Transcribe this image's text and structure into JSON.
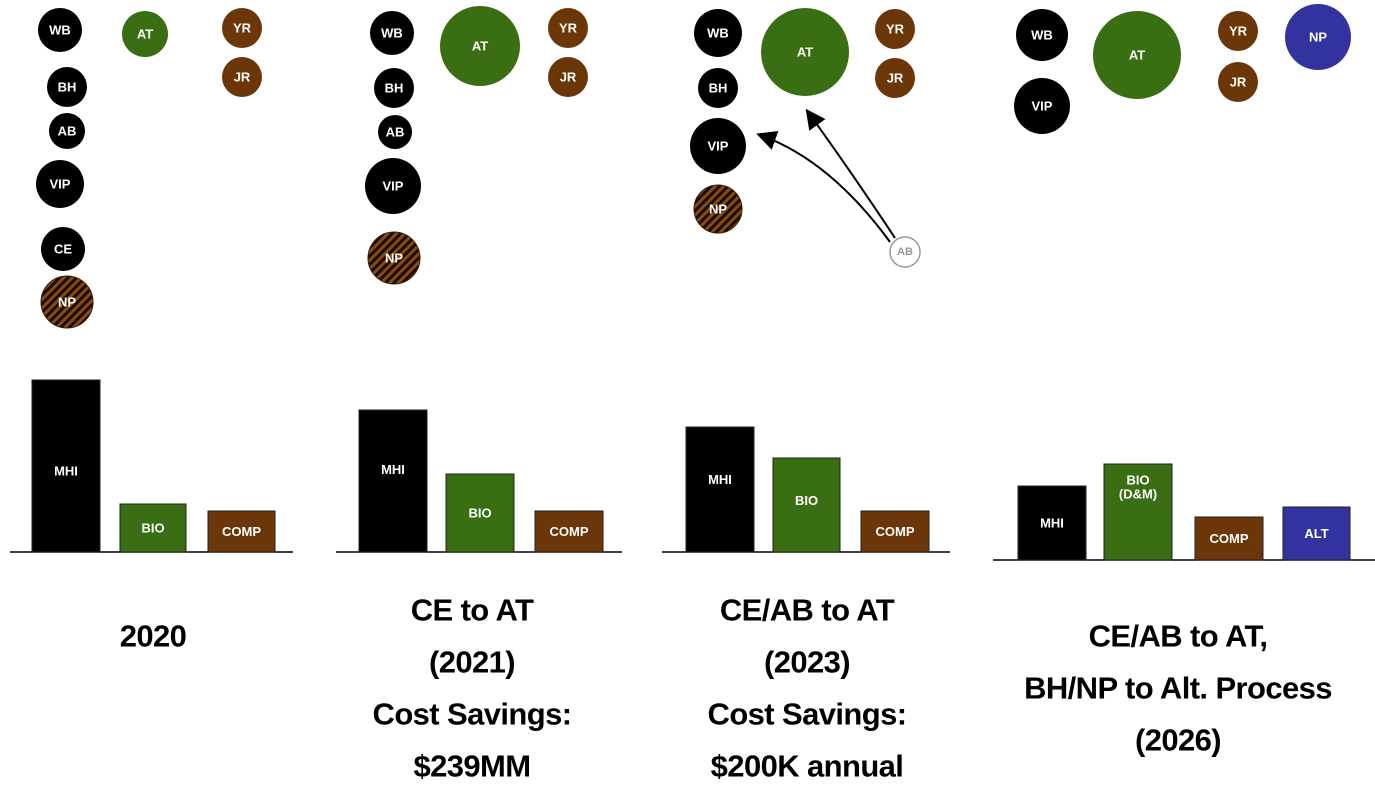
{
  "panels": [
    {
      "circles": [
        "WB",
        "BH",
        "AB",
        "VIP",
        "CE",
        "NP",
        "AT",
        "YR",
        "JR"
      ],
      "bars": [
        {
          "label": "MHI"
        },
        {
          "label": "BIO"
        },
        {
          "label": "COMP"
        }
      ],
      "caption": [
        "2020"
      ]
    },
    {
      "circles": [
        "WB",
        "BH",
        "AB",
        "VIP",
        "NP",
        "AT",
        "YR",
        "JR"
      ],
      "bars": [
        {
          "label": "MHI"
        },
        {
          "label": "BIO"
        },
        {
          "label": "COMP"
        }
      ],
      "caption": [
        "CE to AT",
        "(2021)",
        "Cost Savings:",
        "$239MM"
      ]
    },
    {
      "circles": [
        "WB",
        "BH",
        "VIP",
        "NP",
        "AT",
        "YR",
        "JR",
        "AB"
      ],
      "bars": [
        {
          "label": "MHI"
        },
        {
          "label": "BIO"
        },
        {
          "label": "COMP"
        }
      ],
      "caption": [
        "CE/AB to AT",
        "(2023)",
        "Cost Savings:",
        "$200K annual"
      ]
    },
    {
      "circles": [
        "WB",
        "VIP",
        "AT",
        "YR",
        "JR",
        "NP"
      ],
      "bars": [
        {
          "label": "MHI"
        },
        {
          "label": "BIO",
          "sublabel": "(D&M)"
        },
        {
          "label": "COMP"
        },
        {
          "label": "ALT"
        }
      ],
      "caption": [
        "CE/AB to AT,",
        "BH/NP to Alt. Process",
        "(2026)"
      ]
    }
  ]
}
